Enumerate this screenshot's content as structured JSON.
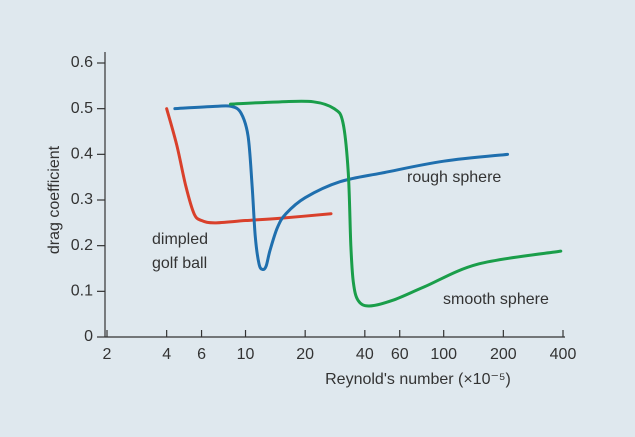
{
  "chart_data": {
    "type": "line",
    "xlabel": "Reynold's number (×10⁻⁵)",
    "ylabel": "drag coefficient",
    "xscale": "log",
    "xlim": [
      2,
      400
    ],
    "xticks": [
      2,
      4,
      6,
      10,
      20,
      40,
      60,
      100,
      200,
      400
    ],
    "ylim": [
      0,
      0.6
    ],
    "yticks": [
      0,
      0.1,
      0.2,
      0.3,
      0.4,
      0.5,
      0.6
    ],
    "series": [
      {
        "name": "dimpled golf ball",
        "color": "#d9402b",
        "x": [
          4,
          4.5,
          5,
          5.5,
          6,
          7,
          10,
          15,
          27
        ],
        "values": [
          0.5,
          0.42,
          0.33,
          0.27,
          0.255,
          0.25,
          0.255,
          0.26,
          0.27
        ]
      },
      {
        "name": "rough sphere",
        "color": "#1f6fae",
        "x": [
          4.4,
          7,
          8.5,
          9.5,
          10.3,
          10.8,
          11.2,
          11.7,
          12.2,
          12.7,
          13.3,
          14.5,
          16,
          20,
          30,
          50,
          100,
          210
        ],
        "values": [
          0.5,
          0.505,
          0.505,
          0.49,
          0.44,
          0.33,
          0.22,
          0.16,
          0.148,
          0.155,
          0.19,
          0.24,
          0.27,
          0.305,
          0.34,
          0.36,
          0.385,
          0.4
        ]
      },
      {
        "name": "smooth sphere",
        "color": "#1a9e4a",
        "x": [
          8.4,
          15,
          22,
          28,
          31,
          33,
          34,
          35,
          37,
          42,
          55,
          80,
          150,
          390
        ],
        "values": [
          0.51,
          0.515,
          0.515,
          0.5,
          0.47,
          0.36,
          0.2,
          0.12,
          0.08,
          0.068,
          0.08,
          0.11,
          0.16,
          0.188
        ]
      }
    ]
  }
}
